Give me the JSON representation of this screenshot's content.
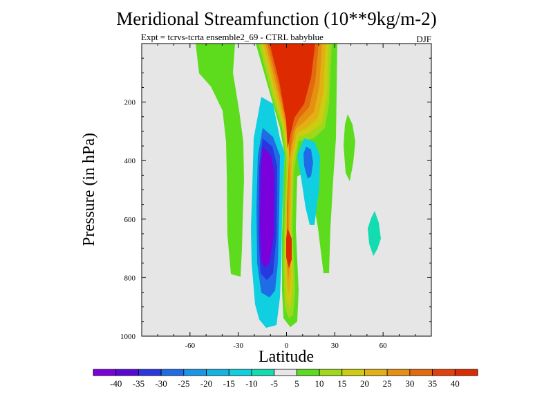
{
  "chart_data": {
    "type": "heatmap",
    "title": "Meridional Streamfunction (10**9kg/m-2)",
    "subtitle": "Expt = tcrvs-tcrta  ensemble2_69 - CTRL babyblue",
    "season_label": "DJF",
    "xlabel": "Latitude",
    "ylabel": "Pressure (in hPa)",
    "xlim": [
      -90,
      90
    ],
    "ylim": [
      0,
      1000
    ],
    "y_axis_inverted": true,
    "x_ticks": [
      "-60",
      "-30",
      "0",
      "30",
      "60"
    ],
    "y_ticks": [
      "200",
      "400",
      "600",
      "800",
      "1000"
    ],
    "background": "#e6e6e6",
    "colorbar": {
      "labels": [
        "-40",
        "-35",
        "-30",
        "-25",
        "-20",
        "-15",
        "-10",
        "-5",
        "5",
        "10",
        "15",
        "20",
        "25",
        "30",
        "35",
        "40"
      ],
      "colors": [
        "#7a00dc",
        "#5a06d6",
        "#2a36e0",
        "#1f6de6",
        "#1a96e8",
        "#14b4e2",
        "#10cfe0",
        "#12dcb0",
        "#e6e6e6",
        "#5ddc1e",
        "#9fd81a",
        "#cccc10",
        "#e2b012",
        "#e69012",
        "#e46a0e",
        "#e2420a",
        "#de2a00"
      ]
    },
    "regions": [
      {
        "name": "weak positive band south",
        "level": "5 to 10",
        "lat_range": [
          -60,
          -25
        ],
        "p_range": [
          20,
          800
        ]
      },
      {
        "name": "strong negative cell",
        "level": "-40 min",
        "lat_range": [
          -25,
          0
        ],
        "p_range": [
          200,
          970
        ],
        "center": [
          -13,
          600
        ]
      },
      {
        "name": "strong positive Hadley cell",
        "level": "40 max",
        "lat_range": [
          -15,
          30
        ],
        "p_range": [
          0,
          970
        ],
        "center": [
          5,
          650
        ]
      },
      {
        "name": "negative cell north",
        "level": "-25",
        "lat_range": [
          5,
          20
        ],
        "p_range": [
          330,
          650
        ],
        "center": [
          13,
          420
        ]
      },
      {
        "name": "weak positive band north",
        "level": "5 to 10",
        "lat_range": [
          33,
          42
        ],
        "p_range": [
          270,
          500
        ]
      },
      {
        "name": "weak negative patch",
        "level": "-5 to -10",
        "lat_range": [
          48,
          58
        ],
        "p_range": [
          570,
          720
        ]
      }
    ]
  }
}
